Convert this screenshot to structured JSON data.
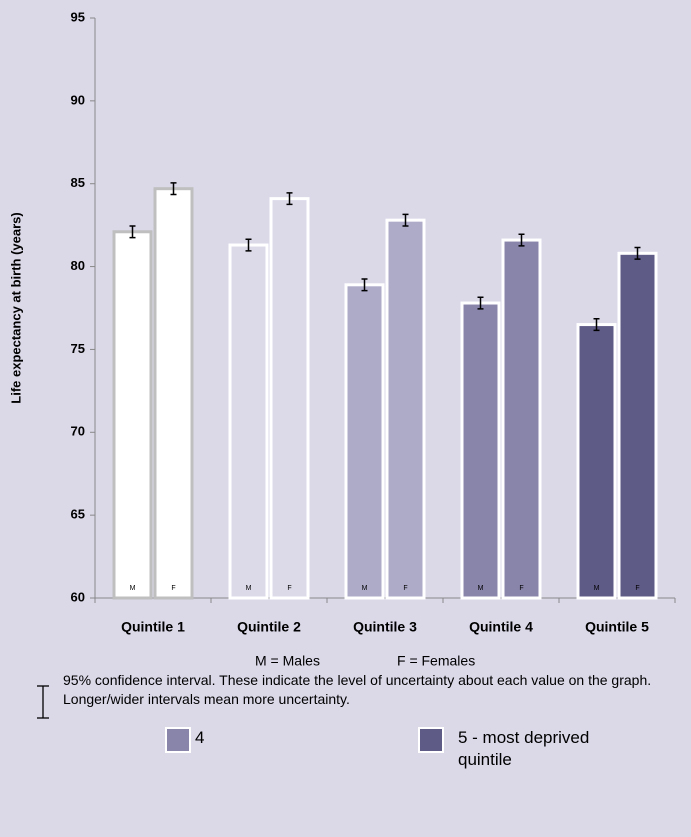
{
  "chart_data": {
    "type": "bar",
    "categories": [
      "Quintile 1",
      "Quintile 2",
      "Quintile 3",
      "Quintile 4",
      "Quintile 5"
    ],
    "category_colors": [
      "#ffffff",
      "#dcdae9",
      "#aeabc9",
      "#8884aa",
      "#5f5b87"
    ],
    "category_borders": [
      "#bfbfbf",
      "#ffffff",
      "#ffffff",
      "#ffffff",
      "#ffffff"
    ],
    "series": [
      {
        "name": "M",
        "values": [
          82.1,
          81.3,
          78.9,
          77.8,
          76.5
        ],
        "errors": [
          0.35,
          0.35,
          0.35,
          0.35,
          0.35
        ]
      },
      {
        "name": "F",
        "values": [
          84.7,
          84.1,
          82.8,
          81.6,
          80.8
        ],
        "errors": [
          0.35,
          0.35,
          0.35,
          0.35,
          0.35
        ]
      }
    ],
    "y_label": "Life expectancy at birth (years)",
    "ylim": [
      60,
      95
    ],
    "yticks": [
      60,
      65,
      70,
      75,
      80,
      85,
      90,
      95
    ],
    "notes": [
      "M = Males",
      "F = Females"
    ],
    "ci_note": "95% confidence interval. These indicate the level of uncertainty about each value on the graph. Longer/wider intervals mean more uncertainty.",
    "legend": [
      {
        "label": "4",
        "color": "#8884aa"
      },
      {
        "label": "5 - most deprived quintile",
        "color": "#5f5b87"
      }
    ]
  }
}
